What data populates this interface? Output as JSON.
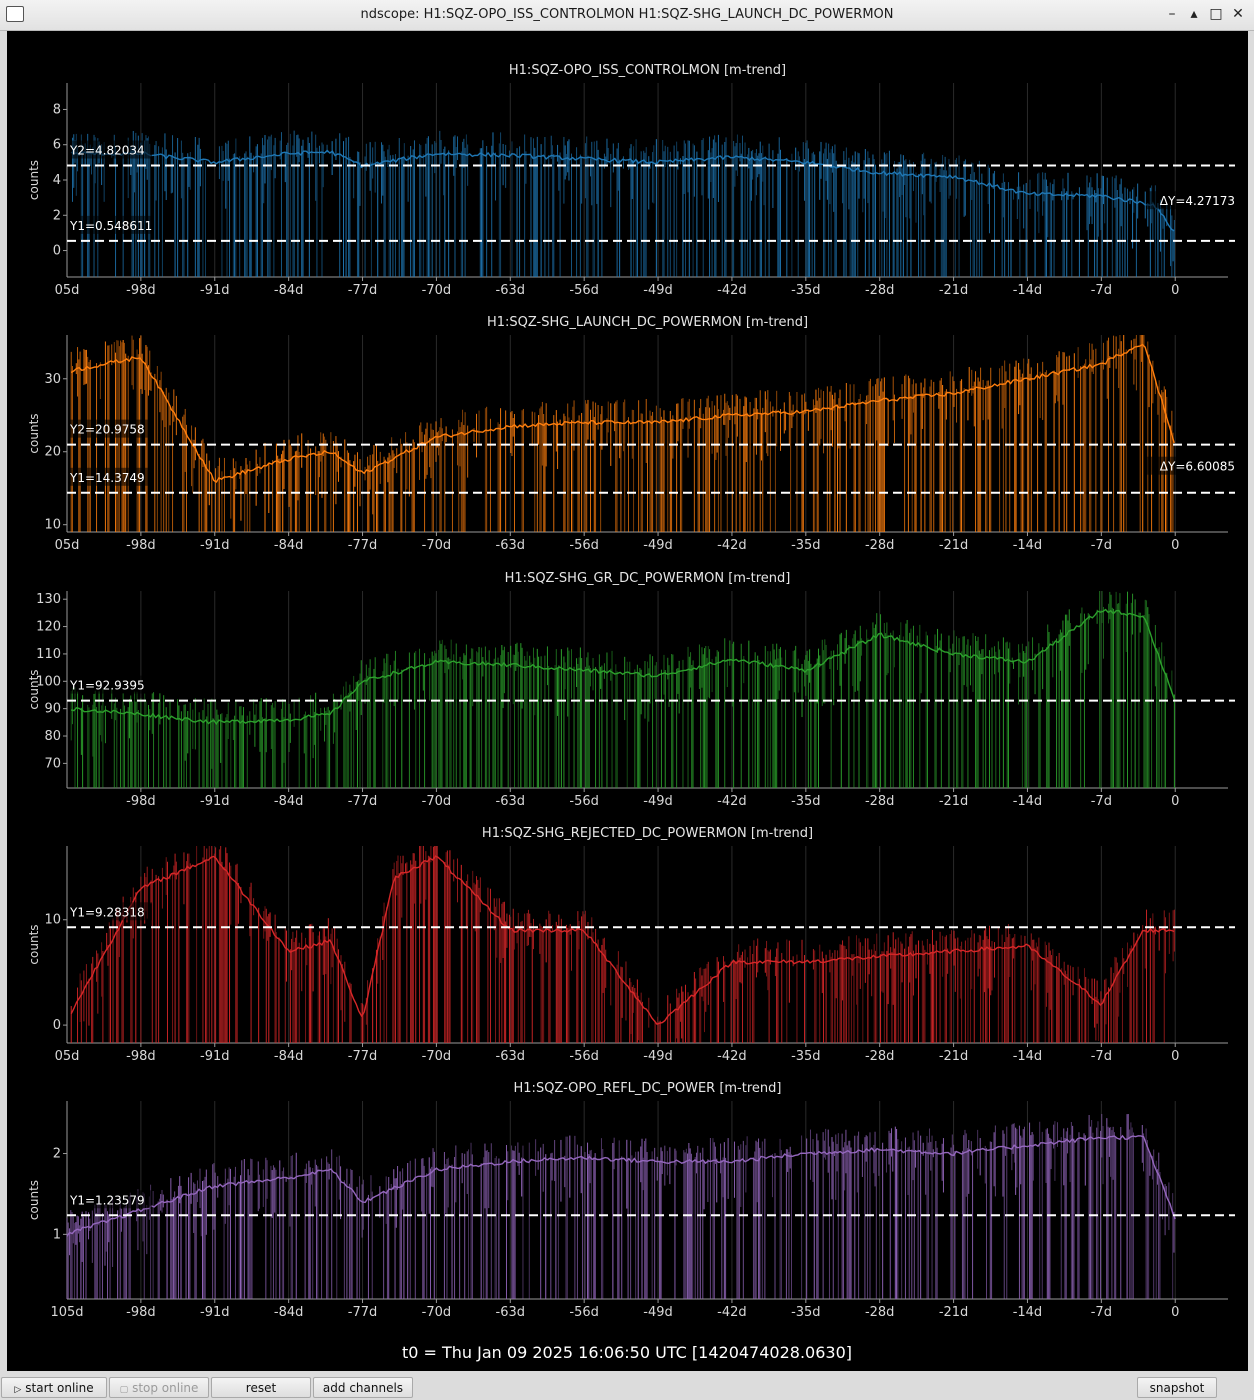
{
  "window": {
    "title": "ndscope: H1:SQZ-OPO_ISS_CONTROLMON H1:SQZ-SHG_LAUNCH_DC_POWERMON",
    "controls": [
      "–",
      "▴",
      "□",
      "✕"
    ]
  },
  "x_ticks": [
    "-98d",
    "-91d",
    "-84d",
    "-77d",
    "-70d",
    "-63d",
    "-56d",
    "-49d",
    "-42d",
    "-35d",
    "-28d",
    "-21d",
    "-14d",
    "-7d",
    "0"
  ],
  "plots": [
    {
      "title": "H1:SQZ-OPO_ISS_CONTROLMON [m-trend]",
      "ylabel": "counts",
      "color": "#1f77b4",
      "edge_tick": "05d",
      "y_ticks": [
        "0",
        "2",
        "4",
        "6",
        "8"
      ],
      "ylim": [
        -1.5,
        9.5
      ],
      "cursors": [
        {
          "label": "Y2=4.82034",
          "value": 4.82034
        },
        {
          "label": "Y1=0.548611",
          "value": 0.548611
        }
      ],
      "delta": "ΔY=4.27173"
    },
    {
      "title": "H1:SQZ-SHG_LAUNCH_DC_POWERMON [m-trend]",
      "ylabel": "counts",
      "color": "#ff7f0e",
      "edge_tick": "05d",
      "y_ticks": [
        "10",
        "20",
        "30"
      ],
      "ylim": [
        9,
        36
      ],
      "cursors": [
        {
          "label": "Y2=20.9758",
          "value": 20.9758
        },
        {
          "label": "Y1=14.3749",
          "value": 14.3749
        }
      ],
      "delta": "ΔY=6.60085"
    },
    {
      "title": "H1:SQZ-SHG_GR_DC_POWERMON [m-trend]",
      "ylabel": "counts",
      "color": "#2ca02c",
      "edge_tick": "",
      "y_ticks": [
        "70",
        "80",
        "90",
        "100",
        "110",
        "120",
        "130"
      ],
      "ylim": [
        61,
        133
      ],
      "cursors": [
        {
          "label": "Y1=92.9395",
          "value": 92.9395
        }
      ],
      "delta": ""
    },
    {
      "title": "H1:SQZ-SHG_REJECTED_DC_POWERMON [m-trend]",
      "ylabel": "counts",
      "color": "#d62728",
      "edge_tick": "05d",
      "y_ticks": [
        "0",
        "10"
      ],
      "ylim": [
        -1.7,
        17
      ],
      "cursors": [
        {
          "label": "Y1=9.28318",
          "value": 9.28318
        }
      ],
      "delta": ""
    },
    {
      "title": "H1:SQZ-OPO_REFL_DC_POWER [m-trend]",
      "ylabel": "counts",
      "color": "#9467bd",
      "edge_tick": "105d",
      "y_ticks": [
        "1",
        "2"
      ],
      "ylim": [
        0.2,
        2.65
      ],
      "cursors": [
        {
          "label": "Y1=1.23579",
          "value": 1.23579
        }
      ],
      "delta": ""
    }
  ],
  "t0_text": "t0 = Thu Jan 09 2025 16:06:50 UTC [1420474028.0630]",
  "buttons": {
    "start_online": "start online",
    "stop_online": "stop online",
    "reset": "reset",
    "add_channels": "add channels",
    "snapshot": "snapshot"
  },
  "chart_data": [
    {
      "type": "line",
      "title": "H1:SQZ-OPO_ISS_CONTROLMON [m-trend]",
      "ylabel": "counts",
      "x": [
        -105,
        -98,
        -91,
        -84,
        -80,
        -77,
        -70,
        -63,
        -56,
        -49,
        -42,
        -35,
        -28,
        -21,
        -14,
        -7,
        -2,
        0
      ],
      "values": [
        5.5,
        5.5,
        5.0,
        5.5,
        5.6,
        4.8,
        5.5,
        5.4,
        5.2,
        5.0,
        5.3,
        5.0,
        4.4,
        4.2,
        3.2,
        3.1,
        2.6,
        1.0
      ],
      "ylim": [
        -1.5,
        9.5
      ]
    },
    {
      "type": "line",
      "title": "H1:SQZ-SHG_LAUNCH_DC_POWERMON [m-trend]",
      "ylabel": "counts",
      "x": [
        -105,
        -98,
        -91,
        -84,
        -80,
        -77,
        -70,
        -63,
        -56,
        -49,
        -42,
        -35,
        -28,
        -21,
        -14,
        -7,
        -3,
        0
      ],
      "values": [
        31,
        33,
        16,
        19,
        20,
        17,
        22,
        23.5,
        24,
        24,
        25,
        25.5,
        27,
        28,
        30,
        32,
        35,
        21
      ],
      "ylim": [
        9,
        36
      ]
    },
    {
      "type": "line",
      "title": "H1:SQZ-SHG_GR_DC_POWERMON [m-trend]",
      "ylabel": "counts",
      "x": [
        -105,
        -98,
        -91,
        -84,
        -80,
        -77,
        -70,
        -63,
        -56,
        -49,
        -42,
        -35,
        -28,
        -21,
        -14,
        -7,
        -3,
        0
      ],
      "values": [
        90,
        88,
        85,
        86,
        88,
        100,
        107,
        106,
        104,
        102,
        108,
        104,
        117,
        110,
        107,
        126,
        124,
        93
      ],
      "ylim": [
        61,
        133
      ]
    },
    {
      "type": "line",
      "title": "H1:SQZ-SHG_REJECTED_DC_POWERMON [m-trend]",
      "ylabel": "counts",
      "x": [
        -105,
        -98,
        -91,
        -84,
        -80,
        -77,
        -74,
        -70,
        -63,
        -56,
        -49,
        -42,
        -35,
        -28,
        -21,
        -14,
        -7,
        -3,
        0
      ],
      "values": [
        0.5,
        13,
        16,
        7,
        8,
        0.5,
        14,
        16,
        9,
        9,
        0,
        6,
        6,
        6.5,
        7,
        7.5,
        2,
        9,
        9
      ],
      "ylim": [
        -1.7,
        17
      ]
    },
    {
      "type": "line",
      "title": "H1:SQZ-OPO_REFL_DC_POWER [m-trend]",
      "ylabel": "counts",
      "x": [
        -105,
        -98,
        -91,
        -84,
        -80,
        -77,
        -70,
        -63,
        -56,
        -49,
        -42,
        -35,
        -28,
        -21,
        -14,
        -7,
        -3,
        0
      ],
      "values": [
        1.0,
        1.3,
        1.6,
        1.7,
        1.8,
        1.4,
        1.8,
        1.9,
        1.95,
        1.9,
        1.9,
        2.0,
        2.05,
        2.0,
        2.1,
        2.2,
        2.2,
        1.2
      ],
      "ylim": [
        0.2,
        2.65
      ]
    }
  ]
}
